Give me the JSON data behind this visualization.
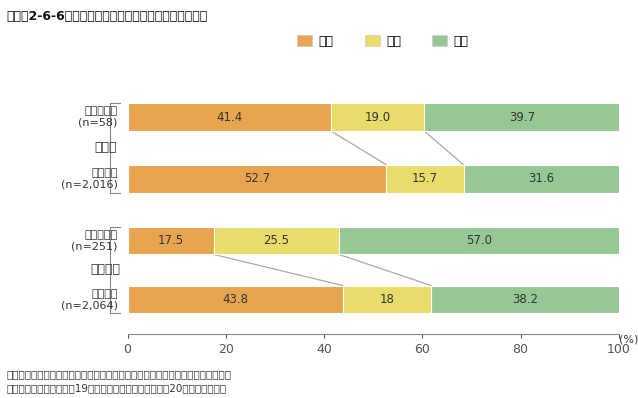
{
  "title": "コラム2-6-6　経営革新への取組状況別、承継後の業績",
  "categories": [
    "非取組企業\n(n=58)",
    "取組企業\n(n=2,016)",
    "非取組企業\n(n=251)",
    "取組企業\n(n=2,064)"
  ],
  "group_labels": [
    "小企業",
    "中小企業"
  ],
  "legend_labels": [
    "改善",
    "不変",
    "悪化"
  ],
  "colors": [
    "#E8A550",
    "#E8DC6A",
    "#96C896"
  ],
  "values": [
    [
      41.4,
      19.0,
      39.7
    ],
    [
      52.7,
      15.7,
      31.6
    ],
    [
      17.5,
      25.5,
      57.0
    ],
    [
      43.8,
      18.0,
      38.2
    ]
  ],
  "bar_labels": [
    [
      "41.4",
      "19.0",
      "39.7"
    ],
    [
      "52.7",
      "15.7",
      "31.6"
    ],
    [
      "17.5",
      "25.5",
      "57.0"
    ],
    [
      "43.8",
      "18",
      "38.2"
    ]
  ],
  "xlabel": "(%)",
  "xlim": [
    0,
    100
  ],
  "xticks": [
    0,
    20,
    40,
    60,
    80,
    100
  ],
  "footnote1": "資料：日本政策金融公庫総合研究所「中小企業の事業承継に関するアンケート」",
  "footnote2": "（注）　小企業は従業者19人以下の企業、中小企業は同20人以上の企業。",
  "bg_color": "#ffffff",
  "connector_color": "#aaaaaa",
  "bracket_color": "#888888"
}
